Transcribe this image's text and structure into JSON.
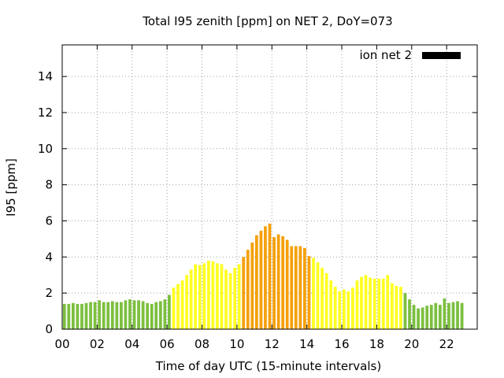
{
  "chart_data": {
    "type": "bar",
    "title": "Total I95 zenith [ppm] on NET 2, DoY=073",
    "xlabel": "Time of day UTC (15-minute intervals)",
    "ylabel": "I95 [ppm]",
    "xlim": [
      0,
      23.75
    ],
    "ylim": [
      0,
      15.75
    ],
    "x_ticks": [
      "00",
      "02",
      "04",
      "06",
      "08",
      "10",
      "12",
      "14",
      "16",
      "18",
      "20",
      "22"
    ],
    "x_tick_values": [
      0,
      2,
      4,
      6,
      8,
      10,
      12,
      14,
      16,
      18,
      20,
      22
    ],
    "y_ticks": [
      "0",
      "2",
      "4",
      "6",
      "8",
      "10",
      "12",
      "14"
    ],
    "y_tick_values": [
      0,
      2,
      4,
      6,
      8,
      10,
      12,
      14
    ],
    "grid": true,
    "legend": {
      "position": "top-right",
      "label": "ion net 2"
    },
    "bar_width_hours": 0.17,
    "colors": {
      "low": "#7cbf3f",
      "medium": "#ffff22",
      "high": "#f5a00c",
      "legend": "#000000"
    },
    "series": [
      {
        "name": "ion net 2",
        "x_start_hour": 0.125,
        "x_step_hours": 0.25,
        "values": [
          1.4,
          1.4,
          1.45,
          1.4,
          1.4,
          1.45,
          1.5,
          1.5,
          1.6,
          1.5,
          1.5,
          1.55,
          1.5,
          1.5,
          1.6,
          1.65,
          1.6,
          1.6,
          1.55,
          1.45,
          1.4,
          1.5,
          1.55,
          1.65,
          1.9,
          2.3,
          2.5,
          2.7,
          3.0,
          3.3,
          3.6,
          3.55,
          3.65,
          3.8,
          3.75,
          3.65,
          3.6,
          3.3,
          3.1,
          3.4,
          3.6,
          4.0,
          4.4,
          4.8,
          5.2,
          5.45,
          5.7,
          5.85,
          5.1,
          5.25,
          5.15,
          4.95,
          4.6,
          4.6,
          4.6,
          4.5,
          4.05,
          3.95,
          3.7,
          3.4,
          3.1,
          2.7,
          2.35,
          2.1,
          2.2,
          2.1,
          2.3,
          2.7,
          2.9,
          3.0,
          2.85,
          2.8,
          2.8,
          2.8,
          3.0,
          2.55,
          2.4,
          2.35,
          2.0,
          1.65,
          1.35,
          1.15,
          1.2,
          1.3,
          1.35,
          1.45,
          1.35,
          1.7,
          1.45,
          1.5,
          1.55,
          1.45
        ],
        "levels": [
          "low",
          "low",
          "low",
          "low",
          "low",
          "low",
          "low",
          "low",
          "low",
          "low",
          "low",
          "low",
          "low",
          "low",
          "low",
          "low",
          "low",
          "low",
          "low",
          "low",
          "low",
          "low",
          "low",
          "low",
          "low",
          "medium",
          "medium",
          "medium",
          "medium",
          "medium",
          "medium",
          "medium",
          "medium",
          "medium",
          "medium",
          "medium",
          "medium",
          "medium",
          "medium",
          "medium",
          "medium",
          "high",
          "high",
          "high",
          "high",
          "high",
          "high",
          "high",
          "high",
          "high",
          "high",
          "high",
          "high",
          "high",
          "high",
          "high",
          "high",
          "medium",
          "medium",
          "medium",
          "medium",
          "medium",
          "medium",
          "medium",
          "medium",
          "medium",
          "medium",
          "medium",
          "medium",
          "medium",
          "medium",
          "medium",
          "medium",
          "medium",
          "medium",
          "medium",
          "medium",
          "medium",
          "low",
          "low",
          "low",
          "low",
          "low",
          "low",
          "low",
          "low",
          "low",
          "low",
          "low",
          "low",
          "low",
          "low"
        ]
      }
    ]
  }
}
